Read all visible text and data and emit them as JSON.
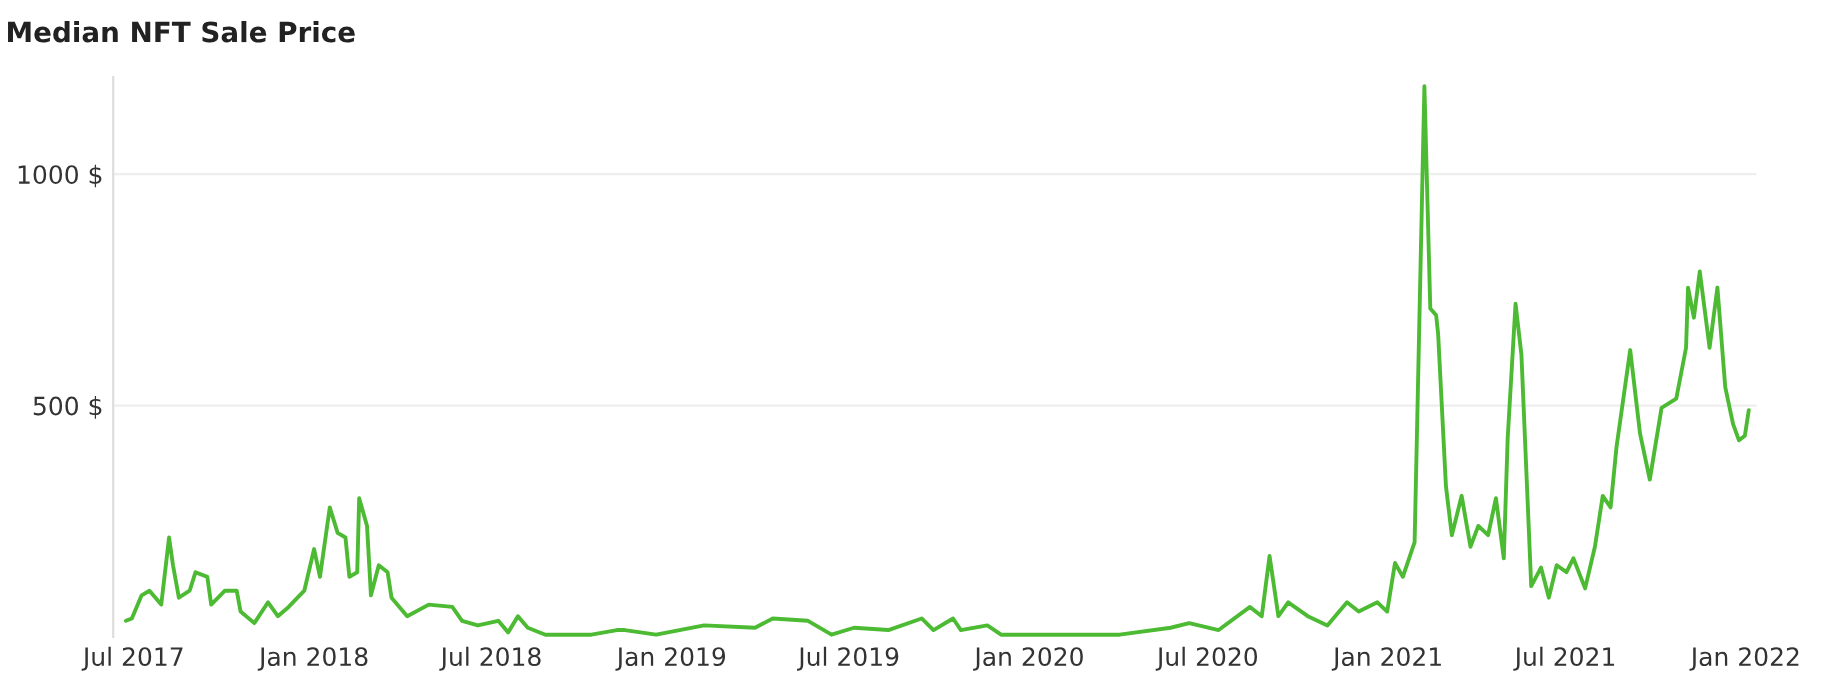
{
  "chart_data": {
    "type": "line",
    "title": "Median NFT Sale Price",
    "x": [
      "2017-06-23",
      "2017-06-29",
      "2017-07-09",
      "2017-07-17",
      "2017-07-29",
      "2017-08-06",
      "2017-08-10",
      "2017-08-16",
      "2017-08-27",
      "2017-09-02",
      "2017-09-14",
      "2017-09-18",
      "2017-10-02",
      "2017-10-14",
      "2017-10-18",
      "2017-11-01",
      "2017-11-15",
      "2017-11-25",
      "2017-12-06",
      "2017-12-22",
      "2018-01-01",
      "2018-01-07",
      "2018-01-17",
      "2018-01-25",
      "2018-02-02",
      "2018-02-06",
      "2018-02-14",
      "2018-02-16",
      "2018-02-24",
      "2018-02-28",
      "2018-03-08",
      "2018-03-17",
      "2018-03-21",
      "2018-04-06",
      "2018-04-28",
      "2018-05-22",
      "2018-06-01",
      "2018-06-17",
      "2018-07-08",
      "2018-07-18",
      "2018-07-28",
      "2018-08-07",
      "2018-08-25",
      "2018-10-11",
      "2018-11-06",
      "2018-11-14",
      "2018-12-16",
      "2019-02-03",
      "2019-03-27",
      "2019-04-14",
      "2019-05-20",
      "2019-06-13",
      "2019-07-06",
      "2019-08-10",
      "2019-09-13",
      "2019-09-25",
      "2019-10-15",
      "2019-10-23",
      "2019-11-19",
      "2019-12-03",
      "2020-01-24",
      "2020-04-02",
      "2020-05-24",
      "2020-06-12",
      "2020-07-12",
      "2020-08-13",
      "2020-08-25",
      "2020-09-02",
      "2020-09-11",
      "2020-09-21",
      "2020-10-11",
      "2020-10-31",
      "2020-11-20",
      "2020-12-02",
      "2020-12-21",
      "2020-12-31",
      "2021-01-08",
      "2021-01-16",
      "2021-01-28",
      "2021-01-30",
      "2021-02-07",
      "2021-02-13",
      "2021-02-19",
      "2021-02-21",
      "2021-03-01",
      "2021-03-07",
      "2021-03-17",
      "2021-03-26",
      "2021-04-03",
      "2021-04-13",
      "2021-04-21",
      "2021-04-29",
      "2021-05-03",
      "2021-05-11",
      "2021-05-17",
      "2021-05-27",
      "2021-06-06",
      "2021-06-14",
      "2021-06-22",
      "2021-07-02",
      "2021-07-09",
      "2021-07-21",
      "2021-07-31",
      "2021-08-08",
      "2021-08-16",
      "2021-08-22",
      "2021-09-05",
      "2021-09-15",
      "2021-09-25",
      "2021-10-07",
      "2021-10-22",
      "2021-11-01",
      "2021-11-03",
      "2021-11-09",
      "2021-11-15",
      "2021-11-25",
      "2021-12-03",
      "2021-12-11",
      "2021-12-19",
      "2021-12-25",
      "2021-12-31",
      "2022-01-04"
    ],
    "series": [
      {
        "color": "#4cbb33",
        "values": [
          35,
          40,
          90,
          100,
          70,
          215,
          155,
          85,
          100,
          140,
          130,
          70,
          100,
          100,
          55,
          30,
          75,
          45,
          65,
          100,
          190,
          130,
          280,
          225,
          215,
          130,
          140,
          300,
          240,
          90,
          155,
          140,
          85,
          45,
          70,
          65,
          35,
          25,
          35,
          10,
          45,
          20,
          5,
          5,
          15,
          15,
          5,
          25,
          20,
          40,
          35,
          5,
          20,
          15,
          40,
          15,
          40,
          15,
          25,
          5,
          5,
          5,
          20,
          30,
          15,
          65,
          45,
          175,
          45,
          75,
          45,
          25,
          75,
          55,
          75,
          55,
          160,
          130,
          205,
          400,
          1190,
          710,
          695,
          655,
          325,
          220,
          305,
          195,
          240,
          220,
          300,
          170,
          430,
          720,
          610,
          110,
          150,
          85,
          155,
          140,
          170,
          105,
          195,
          305,
          280,
          410,
          620,
          440,
          340,
          495,
          515,
          625,
          755,
          690,
          790,
          625,
          755,
          540,
          460,
          425,
          435,
          490
        ]
      }
    ],
    "xlim": [
      "2017-06-10",
      "2022-01-12"
    ],
    "xticks": [
      {
        "value": "2017-07-01",
        "label": "Jul 2017"
      },
      {
        "value": "2018-01-01",
        "label": "Jan 2018"
      },
      {
        "value": "2018-07-01",
        "label": "Jul 2018"
      },
      {
        "value": "2019-01-01",
        "label": "Jan 2019"
      },
      {
        "value": "2019-07-01",
        "label": "Jul 2019"
      },
      {
        "value": "2020-01-01",
        "label": "Jan 2020"
      },
      {
        "value": "2020-07-01",
        "label": "Jul 2020"
      },
      {
        "value": "2021-01-01",
        "label": "Jan 2021"
      },
      {
        "value": "2021-07-01",
        "label": "Jul 2021"
      },
      {
        "value": "2022-01-01",
        "label": "Jan 2022"
      }
    ],
    "ylim": [
      0,
      1210
    ],
    "yticks": [
      {
        "value": 500,
        "label": "500 $"
      },
      {
        "value": 1000,
        "label": "1000 $"
      }
    ],
    "grid": "y",
    "legend": false,
    "marker": "none",
    "line_style": "solid"
  }
}
